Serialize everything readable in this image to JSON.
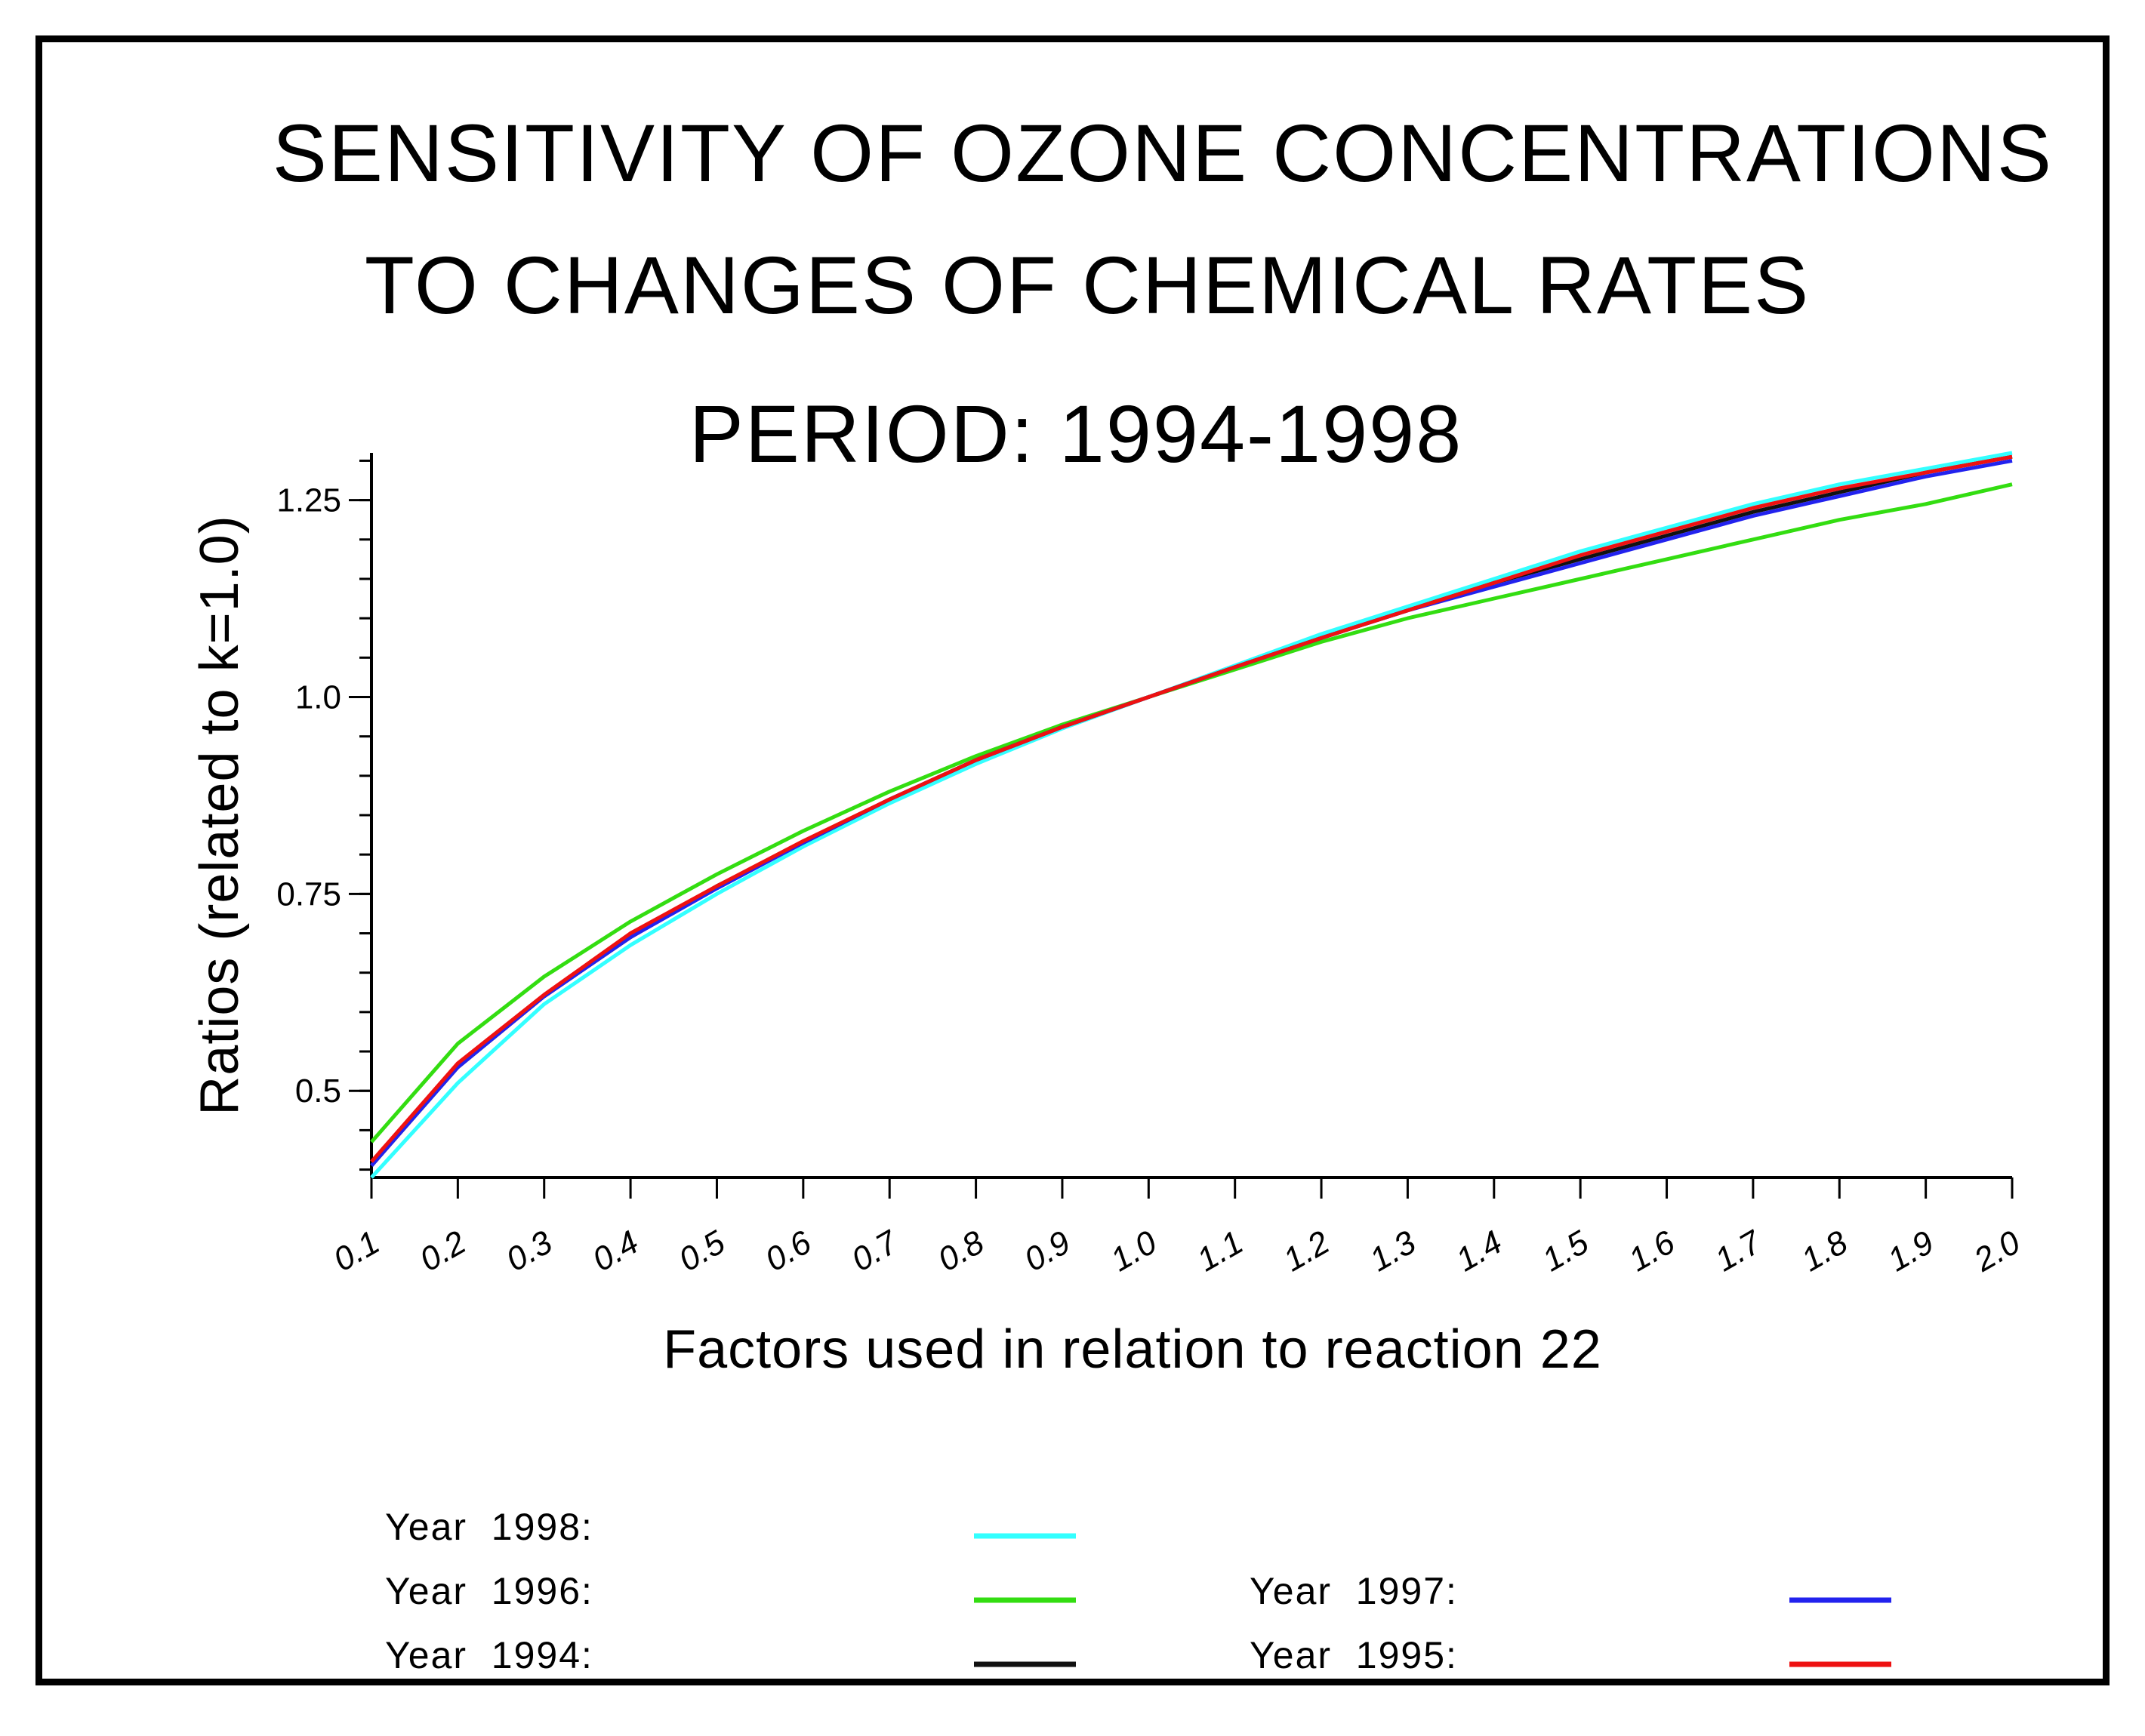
{
  "chart_data": {
    "type": "line",
    "title": [
      "SENSITIVITY OF OZONE CONCENTRATIONS",
      "TO CHANGES OF CHEMICAL RATES",
      "PERIOD: 1994-1998"
    ],
    "xlabel": "Factors used in relation to reaction 22",
    "ylabel": "Ratios (related to k=1.0)",
    "xlim": [
      0.1,
      2.0
    ],
    "ylim": [
      0.39,
      1.31
    ],
    "x": [
      0.1,
      0.2,
      0.3,
      0.4,
      0.5,
      0.6,
      0.7,
      0.8,
      0.9,
      1.0,
      1.1,
      1.2,
      1.3,
      1.4,
      1.5,
      1.6,
      1.7,
      1.8,
      1.9,
      2.0
    ],
    "x_tick_labels": [
      "0.1",
      "0.2",
      "0.3",
      "0.4",
      "0.5",
      "0.6",
      "0.7",
      "0.8",
      "0.9",
      "1.0",
      "1.1",
      "1.2",
      "1.3",
      "1.4",
      "1.5",
      "1.6",
      "1.7",
      "1.8",
      "1.9",
      "2.0"
    ],
    "y_tick_labels": [
      {
        "value": 0.5,
        "label": "0.5"
      },
      {
        "value": 0.75,
        "label": "0.75"
      },
      {
        "value": 1.0,
        "label": "1.0"
      },
      {
        "value": 1.25,
        "label": "1.25"
      }
    ],
    "y_minor_step": 0.05,
    "grid": false,
    "legend_placement": "bottom",
    "series": [
      {
        "name": "Year 1998",
        "label": "Year  1998:",
        "color": "#33ffff",
        "values": [
          0.39,
          0.51,
          0.61,
          0.685,
          0.75,
          0.81,
          0.865,
          0.915,
          0.96,
          1.0,
          1.04,
          1.08,
          1.115,
          1.15,
          1.185,
          1.215,
          1.245,
          1.27,
          1.29,
          1.31
        ]
      },
      {
        "name": "Year 1996",
        "label": "Year  1996:",
        "color": "#33dd11",
        "values": [
          0.435,
          0.56,
          0.645,
          0.715,
          0.775,
          0.83,
          0.88,
          0.925,
          0.965,
          1.0,
          1.035,
          1.07,
          1.1,
          1.125,
          1.15,
          1.175,
          1.2,
          1.225,
          1.245,
          1.27
        ]
      },
      {
        "name": "Year 1994",
        "label": "Year  1994:",
        "color": "#111111",
        "values": [
          0.405,
          0.53,
          0.62,
          0.695,
          0.76,
          0.815,
          0.87,
          0.92,
          0.962,
          1.0,
          1.038,
          1.075,
          1.11,
          1.145,
          1.175,
          1.205,
          1.235,
          1.26,
          1.285,
          1.305
        ]
      },
      {
        "name": "Year 1997",
        "label": "Year  1997:",
        "color": "#2222ee",
        "values": [
          0.405,
          0.53,
          0.62,
          0.695,
          0.757,
          0.815,
          0.87,
          0.92,
          0.962,
          1.0,
          1.038,
          1.075,
          1.11,
          1.14,
          1.17,
          1.2,
          1.23,
          1.255,
          1.28,
          1.3
        ]
      },
      {
        "name": "Year 1995",
        "label": "Year  1995:",
        "color": "#ee1111",
        "values": [
          0.41,
          0.535,
          0.622,
          0.7,
          0.76,
          0.817,
          0.87,
          0.92,
          0.962,
          1.0,
          1.038,
          1.075,
          1.11,
          1.145,
          1.18,
          1.21,
          1.24,
          1.265,
          1.285,
          1.305
        ]
      }
    ]
  }
}
